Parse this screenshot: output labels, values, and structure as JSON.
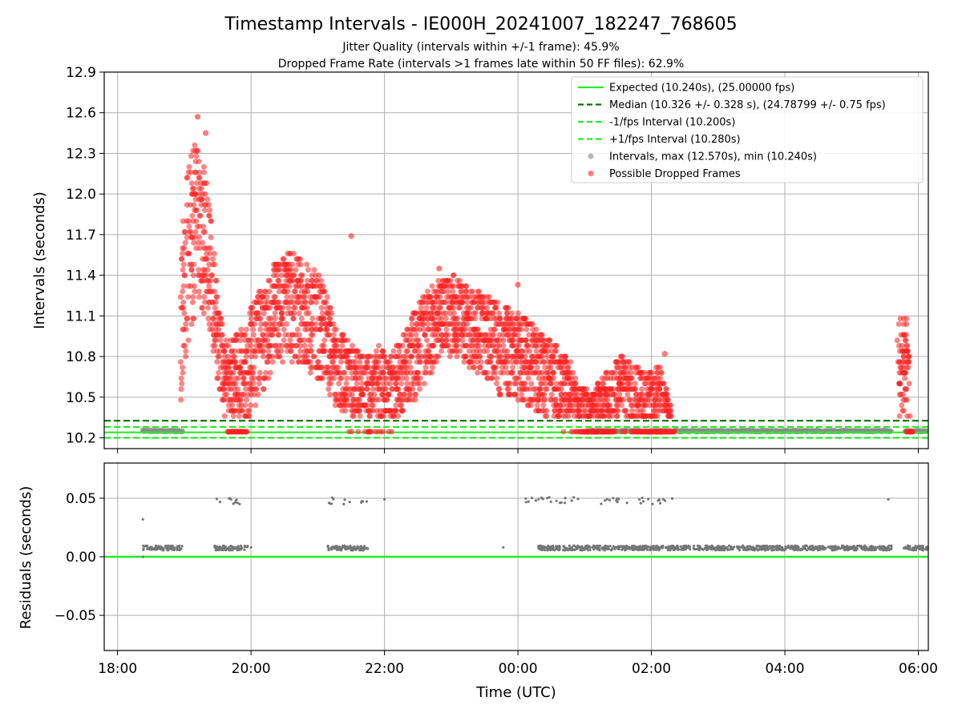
{
  "colors": {
    "expected": "#22ee22",
    "median": "#007700",
    "band": "#22ee22",
    "interval": "#8a8a8a",
    "dropped": "#ff2222",
    "residual": "#777777",
    "grid": "#b0b0b0"
  },
  "chart_data": {
    "type": "scatter",
    "title": "Timestamp Intervals - IE000H_20241007_182247_768605",
    "subtitle_lines": [
      "Jitter Quality (intervals within +/-1 frame): 45.9%",
      "Dropped Frame Rate (intervals >1 frames late within 50 FF files): 62.9%"
    ],
    "xlabel": "Time (UTC)",
    "x_unit": "hours since 18:00 UTC",
    "xlim": [
      -0.2,
      12.15
    ],
    "xticks": [
      0,
      2,
      4,
      6,
      8,
      10,
      12
    ],
    "xtick_labels": [
      "18:00",
      "20:00",
      "22:00",
      "00:00",
      "02:00",
      "04:00",
      "06:00"
    ],
    "grid": true,
    "top_panel": {
      "ylabel": "Intervals (seconds)",
      "ylim": [
        10.12,
        12.9
      ],
      "yticks": [
        10.2,
        10.5,
        10.8,
        11.1,
        11.4,
        11.7,
        12.0,
        12.3,
        12.6,
        12.9
      ],
      "ytick_labels": [
        "10.2",
        "10.5",
        "10.8",
        "11.1",
        "11.4",
        "11.7",
        "12.0",
        "12.3",
        "12.6",
        "12.9"
      ],
      "legend_location": "upper right",
      "legend": [
        "Expected (10.240s), (25.00000 fps)",
        "Median (10.326 +/- 0.328 s), (24.78799 +/- 0.75 fps)",
        "-1/fps Interval (10.200s)",
        "+1/fps Interval (10.280s)",
        "Intervals, max (12.570s), min (10.240s)",
        "Possible Dropped Frames"
      ],
      "reference_lines": {
        "expected": 10.24,
        "median": 10.326,
        "minus_1_fps": 10.2,
        "plus_1_fps": 10.28
      },
      "interval_max": 12.57,
      "interval_min": 10.24,
      "baseline_segments": [
        {
          "x": [
            0.37,
            0.98
          ],
          "y": 10.25
        },
        {
          "x": [
            7.0,
            11.6
          ],
          "y": 10.25
        },
        {
          "x": [
            11.8,
            12.15
          ],
          "y": 10.25
        }
      ],
      "dropped_envelope": [
        [
          0.95,
          10.45,
          11.6
        ],
        [
          1.05,
          10.8,
          12.2
        ],
        [
          1.15,
          11.1,
          12.4
        ],
        [
          1.3,
          11.1,
          12.2
        ],
        [
          1.4,
          10.9,
          11.9
        ],
        [
          1.5,
          10.5,
          11.2
        ],
        [
          1.65,
          10.28,
          10.9
        ],
        [
          1.85,
          10.3,
          11.0
        ],
        [
          2.05,
          10.4,
          11.2
        ],
        [
          2.25,
          10.6,
          11.4
        ],
        [
          2.5,
          10.8,
          11.6
        ],
        [
          2.8,
          10.7,
          11.5
        ],
        [
          3.05,
          10.6,
          11.4
        ],
        [
          3.3,
          10.4,
          11.0
        ],
        [
          3.5,
          10.3,
          10.9
        ],
        [
          3.7,
          10.3,
          10.8
        ],
        [
          3.9,
          10.3,
          10.9
        ],
        [
          4.1,
          10.3,
          10.8
        ],
        [
          4.3,
          10.4,
          11.0
        ],
        [
          4.5,
          10.5,
          11.2
        ],
        [
          4.7,
          10.7,
          11.3
        ],
        [
          4.9,
          10.8,
          11.4
        ],
        [
          5.1,
          10.8,
          11.4
        ],
        [
          5.3,
          10.7,
          11.3
        ],
        [
          5.5,
          10.6,
          11.3
        ],
        [
          5.7,
          10.5,
          11.2
        ],
        [
          5.9,
          10.5,
          11.15
        ],
        [
          6.1,
          10.45,
          11.1
        ],
        [
          6.3,
          10.4,
          11.0
        ],
        [
          6.5,
          10.35,
          10.9
        ],
        [
          6.7,
          10.3,
          10.85
        ],
        [
          6.9,
          10.25,
          10.6
        ],
        [
          7.1,
          10.25,
          10.5
        ],
        [
          7.25,
          10.25,
          10.65
        ],
        [
          7.55,
          10.25,
          10.8
        ],
        [
          7.75,
          10.25,
          10.75
        ],
        [
          7.95,
          10.25,
          10.7
        ],
        [
          8.15,
          10.25,
          10.75
        ],
        [
          8.3,
          10.25,
          10.4
        ],
        [
          11.7,
          10.35,
          11.1
        ],
        [
          11.8,
          10.4,
          11.15
        ],
        [
          11.88,
          10.25,
          10.75
        ]
      ],
      "dropped_peaks": [
        {
          "x": 1.2,
          "y": 12.57
        },
        {
          "x": 1.32,
          "y": 12.45
        },
        {
          "x": 3.5,
          "y": 11.69
        },
        {
          "x": 4.82,
          "y": 11.45
        },
        {
          "x": 6.0,
          "y": 11.33
        },
        {
          "x": 8.2,
          "y": 10.82
        }
      ]
    },
    "bottom_panel": {
      "ylabel": "Residuals (seconds)",
      "ylim": [
        -0.08,
        0.08
      ],
      "yticks": [
        0.05,
        0.0,
        -0.05
      ],
      "ytick_labels": [
        "0.05",
        "0.00",
        "−0.05"
      ],
      "zero_line": 0.0,
      "residual_clusters": [
        {
          "x": [
            0.38,
            0.97
          ],
          "y": 0.0075
        },
        {
          "x": [
            1.45,
            1.95
          ],
          "y": 0.0075
        },
        {
          "x": [
            1.45,
            1.95
          ],
          "y": 0.048
        },
        {
          "x": [
            3.15,
            3.75
          ],
          "y": 0.0075
        },
        {
          "x": [
            3.15,
            3.75
          ],
          "y": 0.048
        },
        {
          "x": [
            6.1,
            6.95
          ],
          "y": 0.048
        },
        {
          "x": [
            6.3,
            11.6
          ],
          "y": 0.0075
        },
        {
          "x": [
            7.2,
            8.35
          ],
          "y": 0.048
        },
        {
          "x": [
            11.78,
            12.15
          ],
          "y": 0.0075
        }
      ],
      "residual_points": [
        {
          "x": 0.38,
          "y": 0.032
        },
        {
          "x": 0.38,
          "y": 0.0
        },
        {
          "x": 2.0,
          "y": 0.008
        },
        {
          "x": 4.0,
          "y": 0.049
        },
        {
          "x": 5.78,
          "y": 0.008
        },
        {
          "x": 11.55,
          "y": 0.049
        }
      ]
    }
  }
}
